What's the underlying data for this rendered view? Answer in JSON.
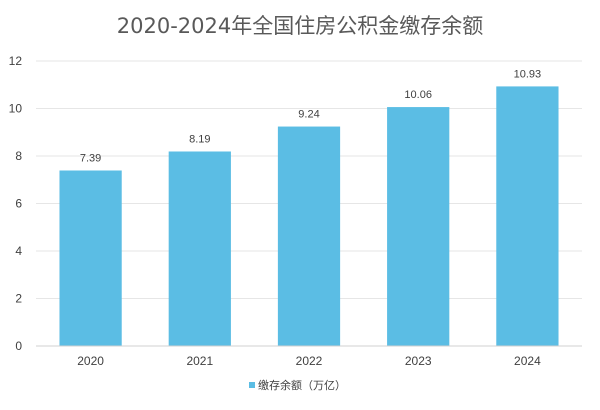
{
  "chart_data": {
    "type": "bar",
    "title": "2020-2024年全国住房公积金缴存余额",
    "categories": [
      "2020",
      "2021",
      "2022",
      "2023",
      "2024"
    ],
    "series": [
      {
        "name": "缴存余额（万亿）",
        "values": [
          7.39,
          8.19,
          9.24,
          10.06,
          10.93
        ],
        "labels": [
          "7.39",
          "8.19",
          "9.24",
          "10.06",
          "10.93"
        ]
      }
    ],
    "ylim": [
      0,
      12
    ],
    "yticks": [
      "0",
      "2",
      "4",
      "6",
      "8",
      "10",
      "12"
    ],
    "grid": true,
    "legend_position": "bottom",
    "bar_color": "#5bbde4",
    "grid_color": "#e6e6e6"
  }
}
